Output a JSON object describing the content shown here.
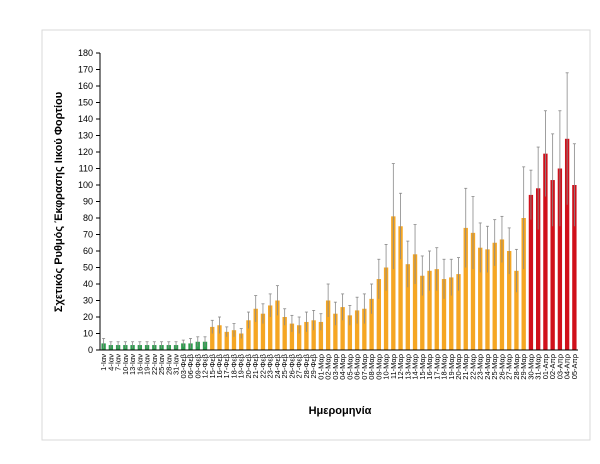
{
  "chart_data": {
    "type": "bar",
    "y_label": "Σχετικός Ρυθμός Έκφρασης Ιικού Φορτίου",
    "x_label": "Ημερομηνία",
    "categories": [
      "1-Ιαν",
      "4-Ιαν",
      "7-Ιαν",
      "10-Ιαν",
      "13-Ιαν",
      "16-Ιαν",
      "19-Ιαν",
      "22-Ιαν",
      "25-Ιαν",
      "28-Ιαν",
      "31-Ιαν",
      "03-Φεβ",
      "06-Φεβ",
      "09-Φεβ",
      "12-Φεβ",
      "15-Φεβ",
      "16-Φεβ",
      "17-Φεβ",
      "18-Φεβ",
      "19-Φεβ",
      "20-Φεβ",
      "21-Φεβ",
      "22-Φεβ",
      "23-Φεβ",
      "24-Φεβ",
      "25-Φεβ",
      "26-Φεβ",
      "27-Φεβ",
      "28-Φεβ",
      "29-Φεβ",
      "01-Μαρ",
      "02-Μαρ",
      "03-Μαρ",
      "04-Μαρ",
      "05-Μαρ",
      "06-Μαρ",
      "07-Μαρ",
      "08-Μαρ",
      "09-Μαρ",
      "10-Μαρ",
      "11-Μαρ",
      "12-Μαρ",
      "13-Μαρ",
      "14-Μαρ",
      "15-Μαρ",
      "16-Μαρ",
      "17-Μαρ",
      "18-Μαρ",
      "19-Μαρ",
      "20-Μαρ",
      "21-Μαρ",
      "22-Μαρ",
      "23-Μαρ",
      "24-Μαρ",
      "25-Μαρ",
      "26-Μαρ",
      "27-Μαρ",
      "28-Μαρ",
      "29-Μαρ",
      "30-Μαρ",
      "31-Μαρ",
      "01-Απρ",
      "02-Απρ",
      "03-Απρ",
      "04-Απρ",
      "05-Απρ"
    ],
    "values": [
      4,
      3,
      3,
      3,
      3,
      3,
      3,
      3,
      3,
      3,
      3,
      4,
      4,
      5,
      5,
      14,
      15,
      11,
      12,
      10,
      18,
      25,
      22,
      27,
      30,
      20,
      16,
      15,
      17,
      18,
      17,
      30,
      22,
      26,
      21,
      24,
      25,
      31,
      43,
      50,
      81,
      75,
      52,
      58,
      45,
      48,
      49,
      43,
      44,
      46,
      74,
      71,
      62,
      61,
      65,
      67,
      60,
      48,
      80,
      94,
      98,
      119,
      103,
      110,
      128,
      100
    ],
    "errors": [
      3,
      2,
      2,
      2,
      2,
      2,
      2,
      2,
      2,
      2,
      2,
      2,
      3,
      3,
      3,
      4,
      5,
      3,
      4,
      3,
      5,
      8,
      6,
      7,
      9,
      5,
      5,
      5,
      6,
      6,
      5,
      10,
      7,
      8,
      6,
      8,
      9,
      9,
      12,
      14,
      32,
      20,
      14,
      18,
      12,
      12,
      13,
      12,
      11,
      10,
      24,
      22,
      15,
      14,
      14,
      14,
      14,
      13,
      31,
      15,
      25,
      26,
      28,
      35,
      40,
      25
    ],
    "colors": [
      "#2e9e4f",
      "#2e9e4f",
      "#2e9e4f",
      "#2e9e4f",
      "#2e9e4f",
      "#2e9e4f",
      "#2e9e4f",
      "#2e9e4f",
      "#2e9e4f",
      "#2e9e4f",
      "#2e9e4f",
      "#2e9e4f",
      "#2e9e4f",
      "#2e9e4f",
      "#2e9e4f",
      "#f5a623",
      "#f5a623",
      "#f5a623",
      "#f5a623",
      "#f5a623",
      "#f5a623",
      "#f5a623",
      "#f5a623",
      "#f5a623",
      "#f5a623",
      "#f5a623",
      "#f5a623",
      "#f5a623",
      "#f5a623",
      "#f5a623",
      "#f5a623",
      "#f5a623",
      "#f5a623",
      "#f5a623",
      "#f5a623",
      "#f5a623",
      "#f5a623",
      "#f5a623",
      "#f5a623",
      "#f5a623",
      "#f5a623",
      "#f5a623",
      "#f5a623",
      "#f5a623",
      "#f5a623",
      "#f5a623",
      "#f5a623",
      "#f5a623",
      "#f5a623",
      "#f5a623",
      "#f5a623",
      "#f5a623",
      "#f5a623",
      "#f5a623",
      "#f5a623",
      "#f5a623",
      "#f5a623",
      "#f5a623",
      "#f5a623",
      "#d0101b",
      "#d0101b",
      "#d0101b",
      "#d0101b",
      "#d0101b",
      "#d0101b",
      "#d0101b"
    ],
    "ylim": [
      0,
      180
    ],
    "yticks": [
      0,
      10,
      20,
      30,
      40,
      50,
      60,
      70,
      80,
      90,
      100,
      110,
      120,
      130,
      140,
      150,
      160,
      170,
      180
    ],
    "grid": false
  }
}
